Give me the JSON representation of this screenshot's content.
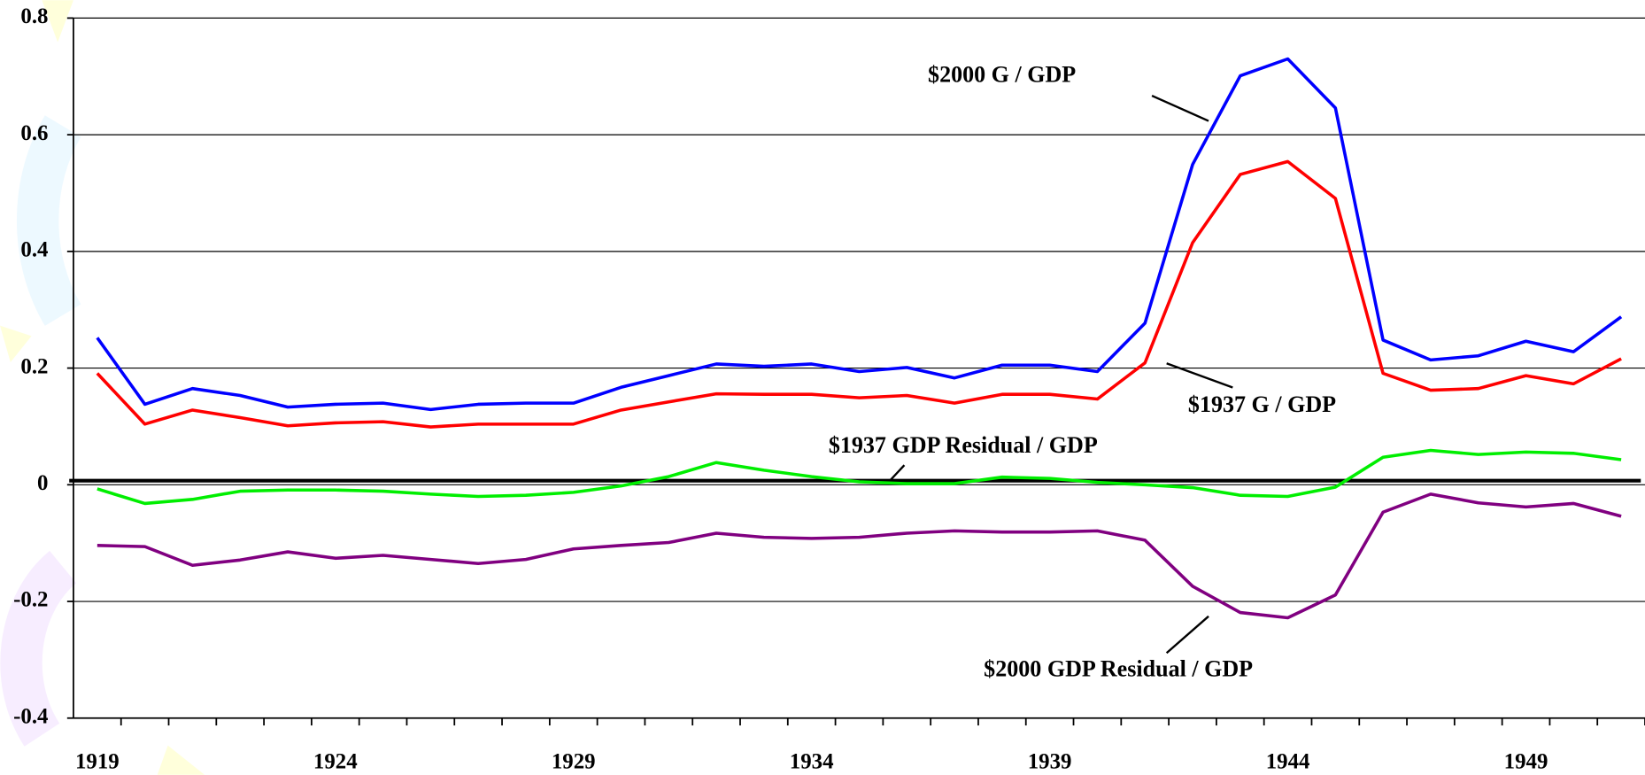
{
  "chart_data": {
    "type": "line",
    "categories": [
      "1919",
      null,
      null,
      null,
      null,
      "1924",
      null,
      null,
      null,
      null,
      "1929",
      null,
      null,
      null,
      null,
      "1934",
      null,
      null,
      null,
      null,
      "1939",
      null,
      null,
      null,
      null,
      "1944",
      null,
      null,
      null,
      null,
      "1949",
      null,
      null
    ],
    "series": [
      {
        "name": "$2000 G / GDP",
        "color": "#0000ff",
        "values": [
          0.252,
          0.138,
          0.165,
          0.153,
          0.133,
          0.138,
          0.14,
          0.129,
          0.138,
          0.14,
          0.14,
          0.167,
          0.187,
          0.207,
          0.203,
          0.207,
          0.194,
          0.201,
          0.183,
          0.205,
          0.205,
          0.194,
          0.277,
          0.549,
          0.701,
          0.73,
          0.646,
          0.248,
          0.214,
          0.221,
          0.246,
          0.228,
          0.288
        ]
      },
      {
        "name": "$1937 G / GDP",
        "color": "#ff0000",
        "values": [
          0.191,
          0.104,
          0.128,
          0.115,
          0.101,
          0.106,
          0.108,
          0.099,
          0.104,
          0.104,
          0.104,
          0.128,
          0.142,
          0.156,
          0.155,
          0.155,
          0.149,
          0.153,
          0.14,
          0.155,
          0.155,
          0.147,
          0.209,
          0.415,
          0.532,
          0.554,
          0.491,
          0.191,
          0.162,
          0.165,
          0.187,
          0.173,
          0.216
        ]
      },
      {
        "name": "$1937 GDP Residual / GDP",
        "color": "#00ee00",
        "values": [
          -0.007,
          -0.032,
          -0.025,
          -0.011,
          -0.009,
          -0.009,
          -0.011,
          -0.016,
          -0.02,
          -0.018,
          -0.013,
          -0.002,
          0.014,
          0.038,
          0.025,
          0.014,
          0.005,
          0.002,
          0.002,
          0.013,
          0.011,
          0.004,
          0,
          -0.005,
          -0.018,
          -0.02,
          -0.004,
          0.047,
          0.059,
          0.052,
          0.056,
          0.054,
          0.043
        ]
      },
      {
        "name": "$2000 GDP Residual / GDP",
        "color": "#800080",
        "values": [
          -0.104,
          -0.106,
          -0.138,
          -0.129,
          -0.115,
          -0.126,
          -0.121,
          -0.128,
          -0.135,
          -0.128,
          -0.11,
          -0.104,
          -0.099,
          -0.083,
          -0.09,
          -0.092,
          -0.09,
          -0.083,
          -0.079,
          -0.081,
          -0.081,
          -0.079,
          -0.095,
          -0.174,
          -0.219,
          -0.228,
          -0.189,
          -0.047,
          -0.016,
          -0.031,
          -0.038,
          -0.032,
          -0.054
        ]
      }
    ],
    "reference_value": 0.007,
    "ylim": [
      -0.4,
      0.8
    ],
    "yticks": [
      -0.4,
      -0.2,
      0,
      0.2,
      0.4,
      0.6,
      0.8
    ],
    "grid": true
  }
}
